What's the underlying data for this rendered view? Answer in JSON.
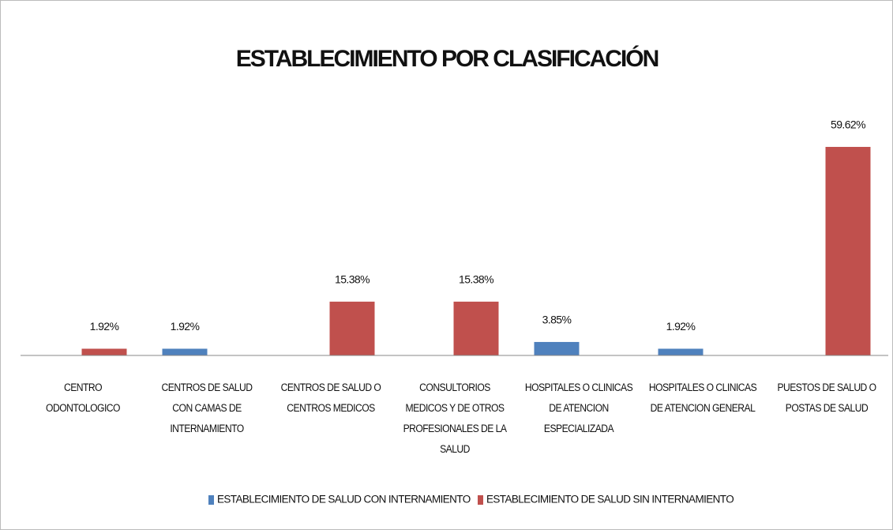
{
  "chart_data": {
    "type": "bar",
    "title": "ESTABLECIMIENTO POR CLASIFICACIÓN",
    "categories": [
      "CENTRO ODONTOLOGICO",
      "CENTROS DE SALUD CON CAMAS DE INTERNAMIENTO",
      "CENTROS DE SALUD O CENTROS MEDICOS",
      "CONSULTORIOS MEDICOS Y DE OTROS PROFESIONALES DE LA SALUD",
      "HOSPITALES O CLINICAS DE ATENCION ESPECIALIZADA",
      "HOSPITALES O CLINICAS DE ATENCION GENERAL",
      "PUESTOS DE SALUD O POSTAS DE SALUD"
    ],
    "series": [
      {
        "name": "ESTABLECIMIENTO DE SALUD CON INTERNAMIENTO",
        "color": "#4f81bd",
        "values": [
          null,
          1.92,
          null,
          null,
          3.85,
          1.92,
          null
        ],
        "value_labels": [
          null,
          "1.92%",
          null,
          null,
          "3.85%",
          "1.92%",
          null
        ]
      },
      {
        "name": "ESTABLECIMIENTO DE SALUD SIN INTERNAMIENTO",
        "color": "#c0504d",
        "values": [
          1.92,
          null,
          15.38,
          15.38,
          null,
          null,
          59.62
        ],
        "value_labels": [
          "1.92%",
          null,
          "15.38%",
          "15.38%",
          null,
          null,
          "59.62%"
        ]
      }
    ],
    "ylim": [
      0,
      70
    ],
    "legend": "bottom"
  }
}
